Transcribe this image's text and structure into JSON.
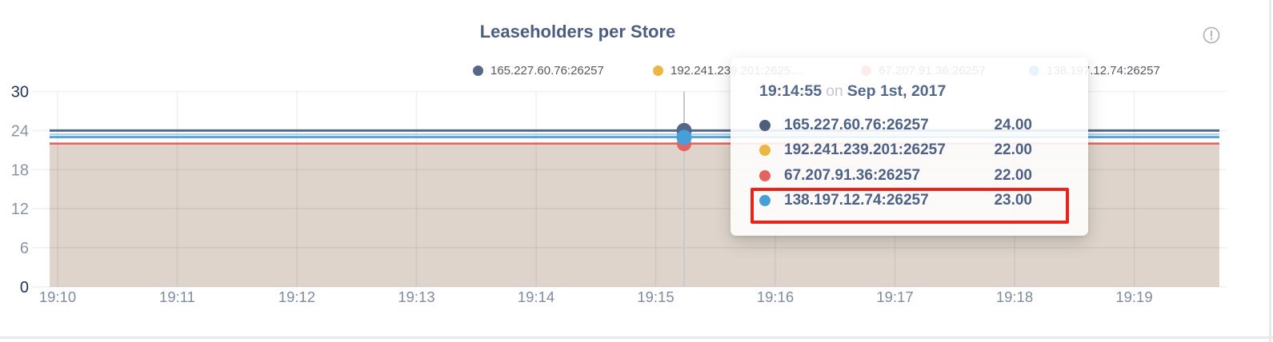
{
  "header": {
    "title": "Leaseholders per Store",
    "accent_color": "#4b5e81"
  },
  "icons": {
    "info": "circle-exclamation"
  },
  "legend": {
    "items": [
      {
        "label": "165.227.60.76:26257",
        "color": "#56688a"
      },
      {
        "label": "192.241.239.201:2625…",
        "color": "#eab743"
      },
      {
        "label": "67.207.91.36:26257",
        "color": "#e5635f"
      },
      {
        "label": "138.197.12.74:26257",
        "color": "#469fd9"
      }
    ]
  },
  "tooltip": {
    "time": "19:14:55",
    "on_word": "on",
    "date": "Sep 1st, 2017",
    "rows": [
      {
        "label": "165.227.60.76:26257",
        "value": "24.00",
        "color": "#4e5f7d"
      },
      {
        "label": "192.241.239.201:26257",
        "value": "22.00",
        "color": "#eab743"
      },
      {
        "label": "67.207.91.36:26257",
        "value": "22.00",
        "color": "#e5635f"
      },
      {
        "label": "138.197.12.74:26257",
        "value": "23.00",
        "color": "#469fd9"
      }
    ],
    "highlight_index": 3,
    "highlight_color": "#e5251c"
  },
  "chart_data": {
    "type": "line",
    "title": "Leaseholders per Store",
    "x_ticks": [
      "19:10",
      "19:11",
      "19:12",
      "19:13",
      "19:14",
      "19:15",
      "19:16",
      "19:17",
      "19:18",
      "19:19"
    ],
    "y_ticks": [
      0,
      6,
      12,
      18,
      24,
      30
    ],
    "ylim": [
      0,
      30
    ],
    "xlabel": "",
    "ylabel": "",
    "grid": true,
    "legend_position": "top",
    "series": [
      {
        "name": "165.227.60.76:26257",
        "color": "#56688a",
        "value": 24
      },
      {
        "name": "192.241.239.201:26257",
        "color": "#eab743",
        "value": 22
      },
      {
        "name": "67.207.91.36:26257",
        "color": "#e5635f",
        "value": 22
      },
      {
        "name": "138.197.12.74:26257",
        "color": "#469fd9",
        "value": 23
      }
    ],
    "hover": {
      "time": "19:14:55",
      "date": "Sep 1st, 2017",
      "values": [
        24,
        22,
        22,
        23
      ]
    },
    "area_fill_color": "#ded4cb",
    "halo_line": {
      "value": 23.42,
      "color": "#b7d4ec"
    },
    "colors": {
      "axis_endpoint_label": "#21345a",
      "axis_label": "#8a94a6",
      "x_axis_label": "#7e8ba1",
      "gridline": "rgba(0,0,0,0.06)",
      "crosshair": "#c9c9c9"
    }
  }
}
